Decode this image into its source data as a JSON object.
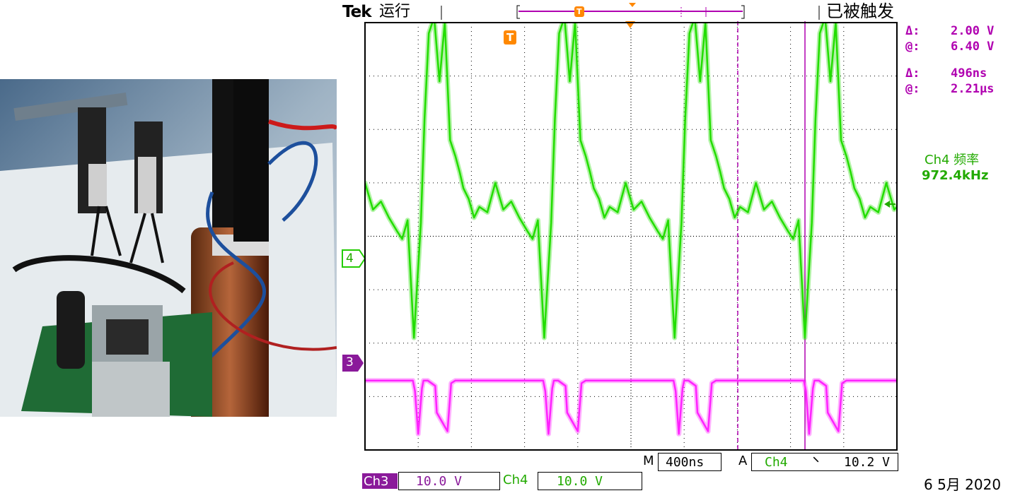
{
  "brand": "Tek",
  "run_state": "运行",
  "trigger_state": "已被触发",
  "cursor_readout": {
    "voltage_delta_symbol": "Δ:",
    "voltage_delta": "2.00 V",
    "voltage_at_symbol": "@:",
    "voltage_at": "6.40 V",
    "time_delta_symbol": "Δ:",
    "time_delta": "496ns",
    "time_at_symbol": "@:",
    "time_at": "2.21µs"
  },
  "measurement": {
    "label": "Ch4 频率",
    "value": "972.4kHz"
  },
  "channel_markers": {
    "ch4": "4",
    "ch3": "3",
    "trigger": "T"
  },
  "timebase": {
    "prefix": "M",
    "value": "400ns"
  },
  "trigger_info": {
    "prefix": "A",
    "source": "Ch4",
    "slope": "⸌",
    "level": "10.2 V"
  },
  "channels": [
    {
      "name": "Ch3",
      "scale": "10.0 V"
    },
    {
      "name": "Ch4",
      "scale": "10.0 V"
    }
  ],
  "date": "6 5月 2020",
  "colors": {
    "ch4": "#22dd00",
    "ch3": "#ff22ff",
    "cursor": "#b000b0",
    "trigger": "#ff8800"
  },
  "chart_data": {
    "type": "line",
    "grid": true,
    "x_divisions": 10,
    "y_divisions": 8,
    "series": [
      {
        "name": "Ch4",
        "period_div": 2.45,
        "x": [
          0,
          0.15,
          0.3,
          0.45,
          0.6,
          0.7,
          0.8,
          0.92,
          1.05,
          1.12,
          1.2,
          1.3,
          1.4,
          1.5,
          1.6,
          1.7,
          1.78,
          1.85,
          1.95,
          2.05,
          2.15,
          2.3,
          2.45
        ],
        "y": [
          1.0,
          0.5,
          0.65,
          0.35,
          0.1,
          -0.05,
          0.3,
          -1.9,
          0.25,
          2.2,
          3.8,
          4.1,
          2.9,
          4.0,
          1.8,
          1.5,
          1.2,
          0.9,
          0.7,
          0.35,
          0.55,
          0.45,
          1.0
        ]
      },
      {
        "name": "Ch3",
        "period_div": 2.45,
        "x": [
          0,
          0.9,
          0.94,
          1.0,
          1.07,
          1.1,
          1.18,
          1.32,
          1.35,
          1.55,
          1.62,
          1.7,
          2.45
        ],
        "y": [
          -2.7,
          -2.7,
          -2.9,
          -3.7,
          -2.85,
          -2.7,
          -2.7,
          -2.8,
          -3.3,
          -3.65,
          -2.75,
          -2.7,
          -2.7
        ]
      }
    ]
  }
}
